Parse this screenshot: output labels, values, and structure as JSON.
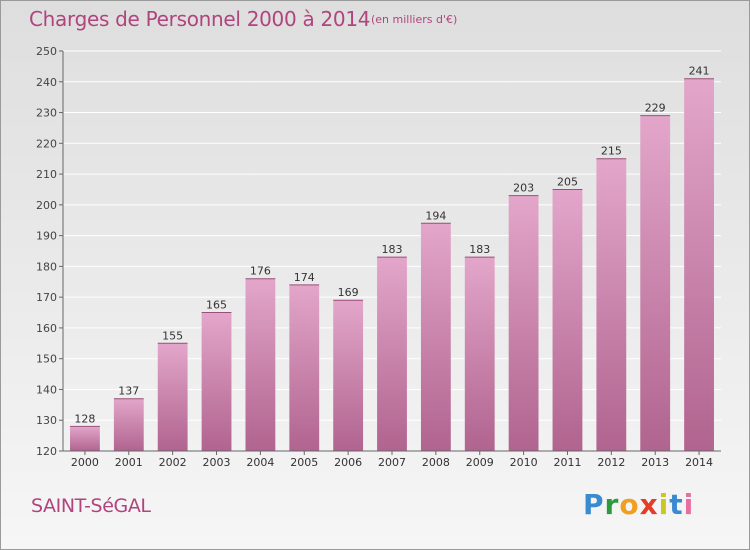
{
  "header": {
    "title": "Charges de Personnel 2000 à 2014",
    "subtitle": "(en milliers d'€)"
  },
  "footer": {
    "commune": "SAINT-SéGAL",
    "logo_text": "Proxiti"
  },
  "colors": {
    "accent": "#b0457e",
    "bar_top": "#e3a6ca",
    "bar_bottom": "#b0648f",
    "grid": "#ffffff"
  },
  "chart_data": {
    "type": "bar",
    "title": "Charges de Personnel 2000 à 2014",
    "subtitle": "(en milliers d'€)",
    "xlabel": "",
    "ylabel": "",
    "categories": [
      "2000",
      "2001",
      "2002",
      "2003",
      "2004",
      "2005",
      "2006",
      "2007",
      "2008",
      "2009",
      "2010",
      "2011",
      "2012",
      "2013",
      "2014"
    ],
    "values": [
      128,
      137,
      155,
      165,
      176,
      174,
      169,
      183,
      194,
      183,
      203,
      205,
      215,
      229,
      241
    ],
    "ylim": [
      120,
      250
    ],
    "yticks": [
      120,
      130,
      140,
      150,
      160,
      170,
      180,
      190,
      200,
      210,
      220,
      230,
      240,
      250
    ],
    "grid": true,
    "data_labels": true
  }
}
